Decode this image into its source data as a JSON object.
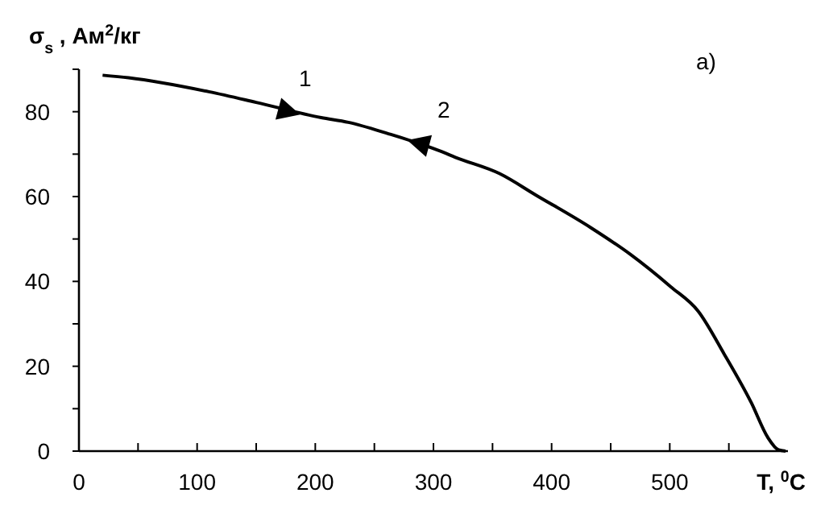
{
  "chart_data": {
    "type": "line",
    "xlabel": "T, $^{0}$C",
    "ylabel": "σ$_{s}$ , Ам$^{2}$/кг",
    "x": [
      20,
      42,
      110,
      150,
      205,
      228,
      262,
      305,
      319,
      356,
      387,
      433,
      467,
      501,
      524,
      546,
      569,
      583,
      592,
      598
    ],
    "values": [
      88.6,
      88.0,
      84.7,
      82.2,
      78.6,
      77.5,
      74.8,
      70.8,
      69.2,
      65.4,
      60.3,
      52.7,
      46.3,
      38.7,
      33,
      22.9,
      11.4,
      3.2,
      0.3,
      0
    ],
    "color": "#000000",
    "xlim": [
      0,
      600
    ],
    "ylim": [
      0,
      90
    ],
    "xticks": [
      0,
      {
        "value": 50,
        "label": null
      },
      100,
      {
        "value": 150,
        "label": null
      },
      200,
      {
        "value": 250,
        "label": null
      },
      300,
      {
        "value": 350,
        "label": null
      },
      400,
      {
        "value": 450,
        "label": null
      },
      500,
      {
        "value": 550,
        "label": null
      }
    ],
    "yticks": [
      0,
      {
        "value": 10,
        "label": null
      },
      20,
      {
        "value": 30,
        "label": null
      },
      40,
      {
        "value": 50,
        "label": null
      },
      60,
      {
        "value": 70,
        "label": null
      },
      80,
      {
        "value": 90,
        "label": null
      }
    ],
    "grid": false,
    "marker": "none",
    "line_style": "solid",
    "annotations": [
      {
        "text": "1",
        "x": 178,
        "y": 80
      },
      {
        "text": "2",
        "x": 287,
        "y": 72.6
      },
      "a)"
    ]
  }
}
